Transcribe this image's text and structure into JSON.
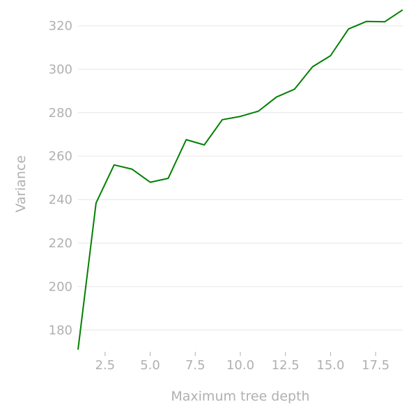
{
  "chart_data": {
    "type": "line",
    "title": "",
    "xlabel": "Maximum tree depth",
    "ylabel": "Variance",
    "xlim": [
      1,
      19
    ],
    "ylim": [
      170,
      328
    ],
    "x_ticks": [
      2.5,
      5.0,
      7.5,
      10.0,
      12.5,
      15.0,
      17.5
    ],
    "x_tick_labels": [
      "2.5",
      "5.0",
      "7.5",
      "10.0",
      "12.5",
      "15.0",
      "17.5"
    ],
    "y_ticks": [
      180,
      200,
      220,
      240,
      260,
      280,
      300,
      320
    ],
    "y_tick_labels": [
      "180",
      "200",
      "220",
      "240",
      "260",
      "280",
      "300",
      "320"
    ],
    "grid": "horizontal",
    "line_color": "#008000",
    "series": [
      {
        "x": [
          1,
          2,
          3,
          4,
          5,
          6,
          7,
          8,
          9,
          10,
          11,
          12,
          13,
          14,
          15,
          16,
          17,
          18,
          19
        ],
        "values": [
          171,
          238.5,
          256,
          254,
          248,
          249.8,
          267.6,
          265.2,
          276.8,
          278.3,
          280.7,
          287.2,
          290.8,
          301.1,
          306.2,
          318.5,
          322,
          321.8,
          327.3
        ]
      }
    ]
  }
}
